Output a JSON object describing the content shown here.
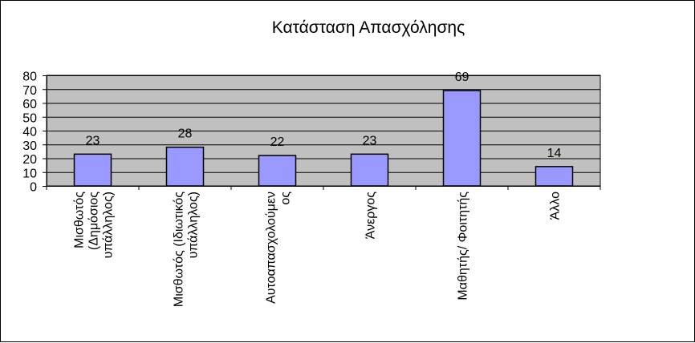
{
  "chart_data": {
    "type": "bar",
    "title": "Κατάσταση Απασχόλησης",
    "xlabel": "",
    "ylabel": "",
    "categories": [
      [
        "Μισθωτός",
        "(Δημόσιος",
        "υπάλληλος)"
      ],
      [
        "Μισθωτός (Ιδιωτικός",
        "υπάλληλος)"
      ],
      [
        "Αυτοαπασχολούμεν",
        "ος"
      ],
      [
        "Άνεργος"
      ],
      [
        "Μαθητής/ Φοιτητής"
      ],
      [
        "Άλλο"
      ]
    ],
    "values": [
      23,
      28,
      22,
      23,
      69,
      14
    ],
    "ylim": [
      0,
      80
    ],
    "yticks": [
      0,
      10,
      20,
      30,
      40,
      50,
      60,
      70,
      80
    ],
    "grid": true,
    "legend": "none",
    "colors": {
      "bar_fill": "#9999ff",
      "bar_stroke": "#000000",
      "plot_background": "#c0c0c0",
      "gridline": "#000000"
    }
  }
}
